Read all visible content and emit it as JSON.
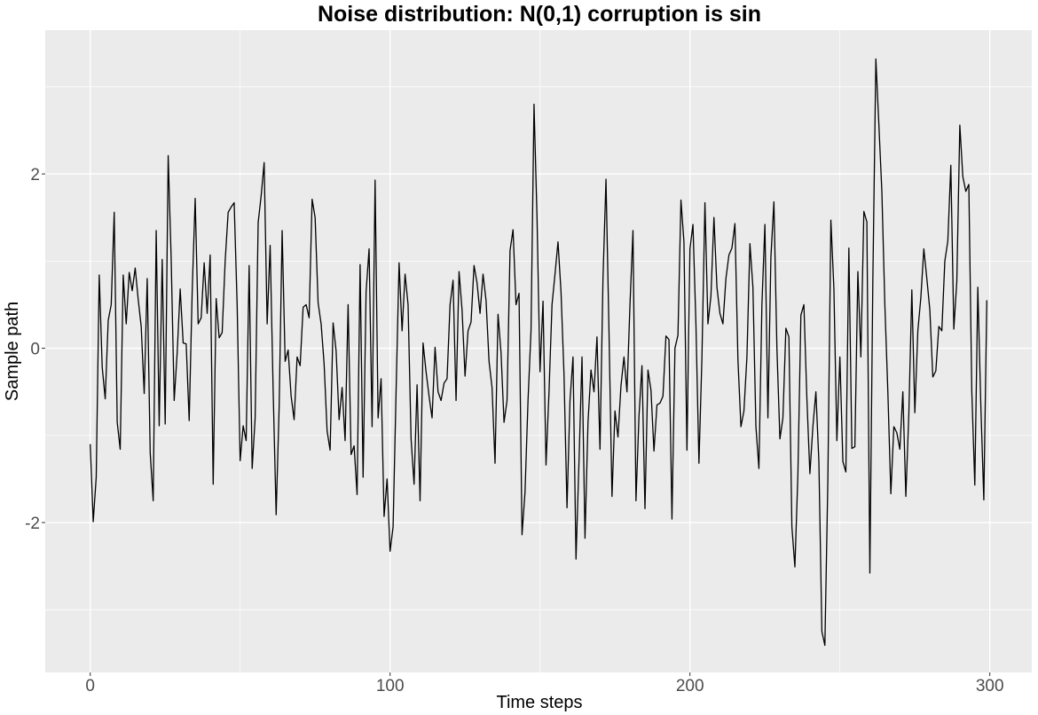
{
  "chart_data": {
    "type": "line",
    "title": "Noise distribution: N(0,1) corruption is sin",
    "xlabel": "Time steps",
    "ylabel": "Sample path",
    "xlim": [
      -15,
      314
    ],
    "ylim": [
      -3.72,
      3.65
    ],
    "x_ticks": [
      0,
      100,
      200,
      300
    ],
    "y_ticks": [
      -2,
      0,
      2
    ],
    "grid": true,
    "background": "#ebebeb",
    "line_color": "#000000",
    "series": [
      {
        "x_start": 0,
        "x_step": 1,
        "values": [
          -1.1,
          -1.99,
          -1.48,
          0.84,
          -0.22,
          -0.58,
          0.32,
          0.5,
          1.56,
          -0.85,
          -1.16,
          0.84,
          0.28,
          0.87,
          0.66,
          0.92,
          0.56,
          0.25,
          -0.52,
          0.8,
          -1.2,
          -1.75,
          1.35,
          -0.89,
          1.02,
          -0.87,
          2.21,
          1.02,
          -0.6,
          -0.05,
          0.68,
          0.06,
          0.05,
          -0.83,
          0.65,
          1.72,
          0.28,
          0.35,
          0.98,
          0.4,
          1.07,
          -1.56,
          0.57,
          0.12,
          0.18,
          1.0,
          1.56,
          1.62,
          1.67,
          0.49,
          -1.29,
          -0.89,
          -1.06,
          0.95,
          -1.38,
          -0.8,
          1.44,
          1.75,
          2.13,
          0.28,
          1.18,
          -0.48,
          -1.91,
          -0.68,
          1.35,
          -0.15,
          -0.02,
          -0.55,
          -0.82,
          -0.1,
          -0.2,
          0.47,
          0.5,
          0.35,
          1.71,
          1.5,
          0.52,
          0.28,
          -0.18,
          -0.95,
          -1.17,
          0.29,
          -0.03,
          -0.82,
          -0.45,
          -1.06,
          0.5,
          -1.22,
          -1.12,
          -1.68,
          0.96,
          -1.48,
          0.65,
          1.14,
          -0.9,
          1.93,
          -0.8,
          -0.35,
          -1.93,
          -1.5,
          -2.33,
          -2.05,
          -0.5,
          0.98,
          0.2,
          0.85,
          0.5,
          -1.04,
          -1.56,
          -0.42,
          -1.75,
          0.06,
          -0.27,
          -0.55,
          -0.8,
          0.01,
          -0.5,
          -0.6,
          -0.4,
          -0.35,
          0.5,
          0.78,
          -0.6,
          0.88,
          0.44,
          -0.32,
          0.2,
          0.3,
          0.95,
          0.75,
          0.4,
          0.85,
          0.55,
          -0.15,
          -0.45,
          -1.32,
          0.39,
          -0.05,
          -0.85,
          -0.6,
          1.12,
          1.36,
          0.5,
          0.63,
          -2.14,
          -1.65,
          -0.6,
          0.2,
          2.8,
          1.5,
          -0.27,
          0.54,
          -1.34,
          -0.5,
          0.5,
          0.85,
          1.22,
          0.65,
          -0.3,
          -1.83,
          -0.6,
          -0.1,
          -2.42,
          -1.3,
          -0.1,
          -2.18,
          -0.85,
          -0.25,
          -0.5,
          0.13,
          -1.16,
          0.8,
          1.94,
          0.2,
          -1.7,
          -0.72,
          -1.02,
          -0.43,
          -0.1,
          -0.5,
          0.5,
          1.35,
          -1.75,
          -0.78,
          -0.2,
          -1.84,
          -0.25,
          -0.48,
          -1.18,
          -0.65,
          -0.63,
          -0.55,
          0.14,
          0.1,
          -1.96,
          0.0,
          0.15,
          1.7,
          1.22,
          -1.17,
          1.14,
          1.42,
          0.27,
          -1.32,
          -0.1,
          1.67,
          0.28,
          0.6,
          1.5,
          0.7,
          0.4,
          0.28,
          0.8,
          1.07,
          1.15,
          1.43,
          -0.13,
          -0.9,
          -0.72,
          -0.1,
          1.2,
          0.7,
          -0.9,
          -1.38,
          0.5,
          1.42,
          -0.8,
          1.05,
          1.68,
          0.0,
          -1.04,
          -0.8,
          0.23,
          0.13,
          -2.05,
          -2.51,
          -1.45,
          0.38,
          0.5,
          -0.58,
          -1.44,
          -0.9,
          -0.5,
          -1.3,
          -3.25,
          -3.41,
          -1.5,
          1.47,
          0.69,
          -1.06,
          -0.1,
          -1.3,
          -1.42,
          1.15,
          -1.15,
          -1.13,
          0.88,
          -0.1,
          1.57,
          1.45,
          -2.58,
          0.8,
          3.32,
          2.57,
          1.8,
          0.5,
          -0.5,
          -1.67,
          -0.9,
          -0.97,
          -1.16,
          -0.5,
          -1.7,
          -0.75,
          0.67,
          -0.74,
          0.2,
          0.58,
          1.14,
          0.8,
          0.44,
          -0.33,
          -0.26,
          0.25,
          0.2,
          1.0,
          1.23,
          2.1,
          0.22,
          0.77,
          2.56,
          1.97,
          1.8,
          1.88,
          -0.5,
          -1.57,
          0.7,
          -0.65,
          -1.74,
          0.55
        ]
      }
    ]
  }
}
